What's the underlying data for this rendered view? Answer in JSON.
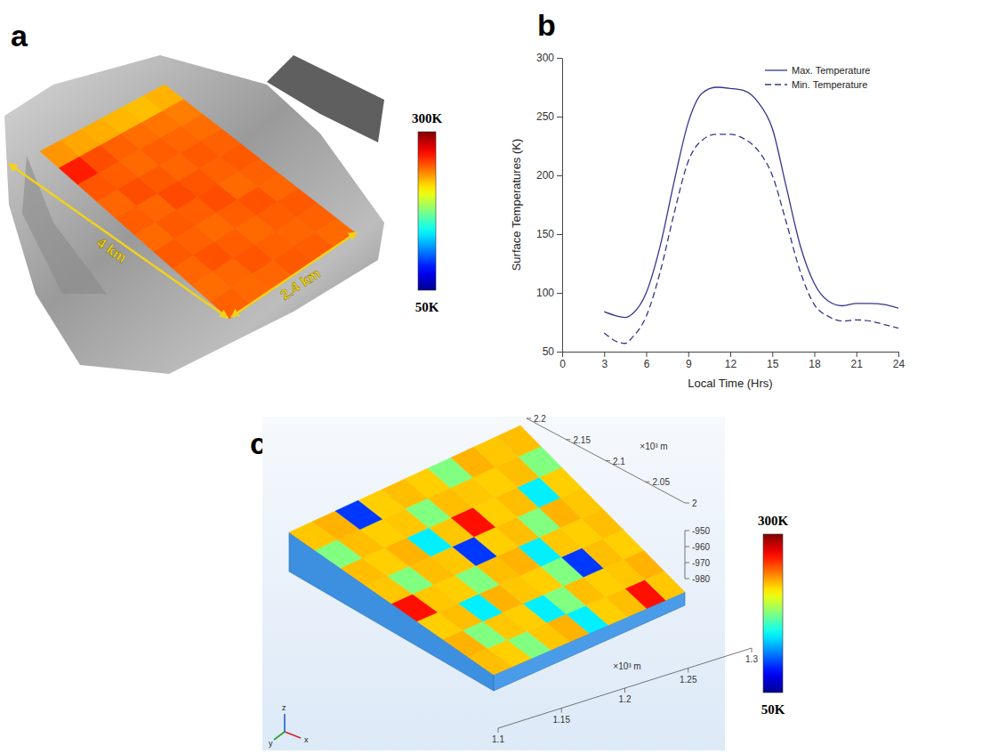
{
  "chart_data": [
    {
      "type": "surface",
      "panel": "a",
      "annotations": [
        "4 km",
        "2.4 km"
      ],
      "cells": [
        [
          232,
          262,
          248,
          244,
          246,
          243,
          247,
          244,
          242,
          245
        ],
        [
          228,
          250,
          246,
          250,
          244,
          247,
          245,
          249,
          244,
          243
        ],
        [
          226,
          245,
          243,
          247,
          251,
          246,
          243,
          246,
          248,
          244
        ],
        [
          224,
          242,
          246,
          244,
          248,
          250,
          246,
          243,
          245,
          247
        ],
        [
          222,
          240,
          244,
          247,
          245,
          243,
          249,
          246,
          244,
          246
        ],
        [
          225,
          238,
          242,
          245,
          247,
          245,
          244,
          247,
          245,
          243
        ]
      ],
      "colorbar_range": [
        50,
        300
      ],
      "colorbar_ticks": [
        {
          "value": 300,
          "label": "300K"
        },
        {
          "value": 50,
          "label": "50K"
        }
      ]
    },
    {
      "type": "line",
      "panel": "b",
      "x": [
        3,
        4,
        4.5,
        5,
        6,
        7,
        8,
        9,
        10,
        11,
        12,
        13,
        14,
        15,
        16,
        17,
        18,
        19,
        20,
        21,
        22,
        23,
        24
      ],
      "series": [
        {
          "name": "Max. Temperature",
          "color": "#35358f",
          "line_style": "solid",
          "values": [
            84,
            80,
            79,
            82,
            100,
            140,
            195,
            245,
            270,
            275,
            274,
            272,
            262,
            240,
            190,
            140,
            108,
            93,
            89,
            91,
            91,
            90,
            87
          ]
        },
        {
          "name": "Min. Temperature",
          "color": "#35358f",
          "line_style": "dashed",
          "values": [
            66,
            58,
            57,
            62,
            80,
            118,
            168,
            212,
            230,
            235,
            235,
            231,
            221,
            200,
            160,
            118,
            90,
            80,
            76,
            77,
            76,
            73,
            70
          ]
        }
      ],
      "xlabel": "Local Time (Hrs)",
      "ylabel": "Surface Temperatures (K)",
      "xlim": [
        0,
        24
      ],
      "xticks": [
        0,
        3,
        6,
        9,
        12,
        15,
        18,
        21,
        24
      ],
      "ylim": [
        50,
        300
      ],
      "yticks": [
        50,
        100,
        150,
        200,
        250,
        300
      ],
      "legend": "upper right"
    },
    {
      "type": "surface",
      "panel": "c",
      "xlim": [
        1.1,
        1.3
      ],
      "xticks": [
        1.1,
        1.15,
        1.2,
        1.25,
        1.3
      ],
      "ylim": [
        2,
        2.2
      ],
      "yticks": [
        2,
        2.05,
        2.1,
        2.15,
        2.2
      ],
      "zlim": [
        -980,
        -950
      ],
      "zticks": [
        -950,
        -960,
        -970,
        -980
      ],
      "x_unit": "×10³ m",
      "y_unit": "×10³ m",
      "triad_labels": [
        "x",
        "y",
        "z"
      ],
      "cells": [
        [
          222,
          218,
          175,
          220,
          225,
          140,
          218,
          222,
          265,
          220
        ],
        [
          225,
          175,
          220,
          218,
          140,
          175,
          222,
          218,
          220,
          225
        ],
        [
          218,
          222,
          140,
          225,
          220,
          218,
          175,
          95,
          222,
          218
        ],
        [
          265,
          220,
          218,
          175,
          222,
          225,
          140,
          220,
          218,
          222
        ],
        [
          220,
          175,
          222,
          220,
          95,
          218,
          222,
          175,
          225,
          220
        ],
        [
          222,
          218,
          225,
          140,
          220,
          265,
          218,
          222,
          140,
          218
        ],
        [
          175,
          222,
          218,
          220,
          175,
          222,
          220,
          218,
          222,
          175
        ],
        [
          220,
          225,
          95,
          218,
          222,
          218,
          175,
          225,
          220,
          222
        ]
      ],
      "colorbar_range": [
        50,
        300
      ],
      "colorbar_ticks": [
        {
          "value": 300,
          "label": "300K"
        },
        {
          "value": 50,
          "label": "50K"
        }
      ]
    }
  ]
}
